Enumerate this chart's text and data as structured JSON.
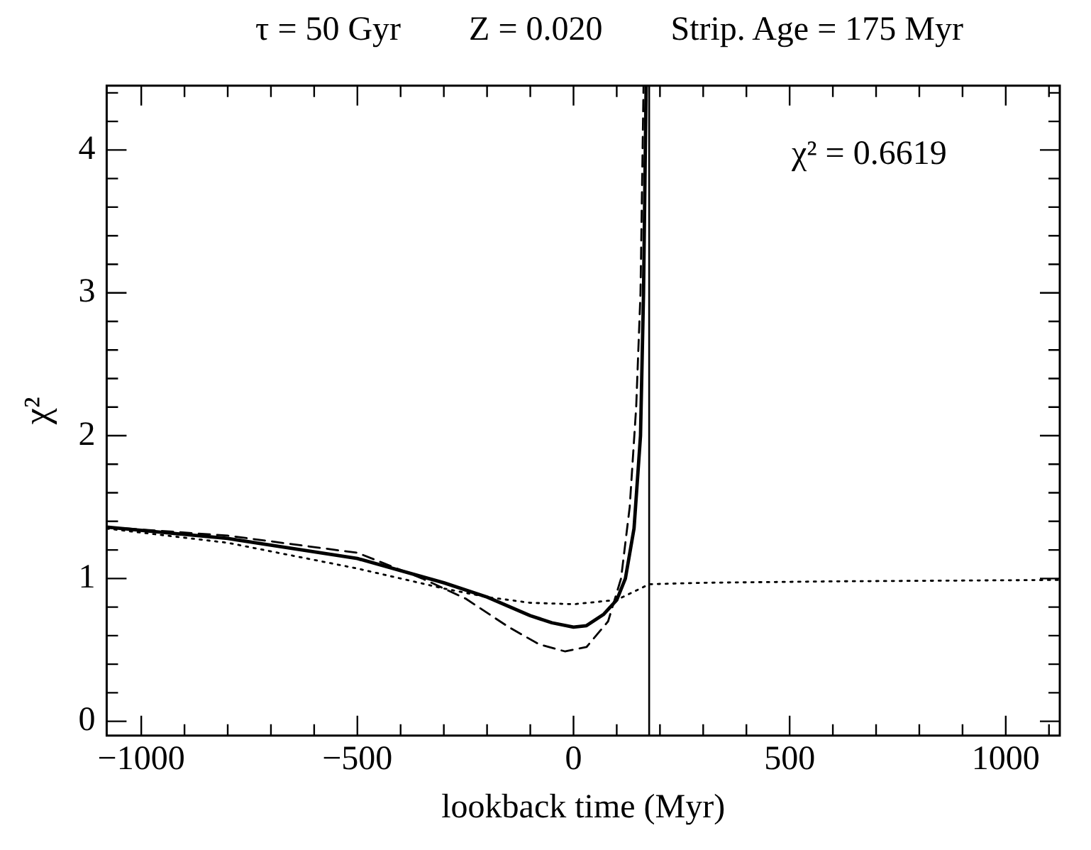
{
  "chart_data": {
    "type": "line",
    "title": "τ = 50 Gyr        Z = 0.020        Strip. Age = 175 Myr",
    "xlabel": "lookback time (Myr)",
    "ylabel": "χ²",
    "annotations": [
      "χ² = 0.6619"
    ],
    "xlim": [
      -1080,
      1125
    ],
    "ylim": [
      -0.1,
      4.45
    ],
    "xticks": [
      -1000,
      {
        "value": -900,
        "label": null
      },
      {
        "value": -800,
        "label": null
      },
      {
        "value": -700,
        "label": null
      },
      {
        "value": -600,
        "label": null
      },
      -500,
      {
        "value": -400,
        "label": null
      },
      {
        "value": -300,
        "label": null
      },
      {
        "value": -200,
        "label": null
      },
      {
        "value": -100,
        "label": null
      },
      0,
      {
        "value": 100,
        "label": null
      },
      {
        "value": 200,
        "label": null
      },
      {
        "value": 300,
        "label": null
      },
      {
        "value": 400,
        "label": null
      },
      500,
      {
        "value": 600,
        "label": null
      },
      {
        "value": 700,
        "label": null
      },
      {
        "value": 800,
        "label": null
      },
      {
        "value": 900,
        "label": null
      },
      1000,
      {
        "value": 1100,
        "label": null
      }
    ],
    "yticks": [
      0,
      {
        "value": 0.2,
        "label": null
      },
      {
        "value": 0.4,
        "label": null
      },
      {
        "value": 0.6,
        "label": null
      },
      {
        "value": 0.8,
        "label": null
      },
      1,
      {
        "value": 1.2,
        "label": null
      },
      {
        "value": 1.4,
        "label": null
      },
      {
        "value": 1.6,
        "label": null
      },
      {
        "value": 1.8,
        "label": null
      },
      2,
      {
        "value": 2.2,
        "label": null
      },
      {
        "value": 2.4,
        "label": null
      },
      {
        "value": 2.6,
        "label": null
      },
      {
        "value": 2.8,
        "label": null
      },
      3,
      {
        "value": 3.2,
        "label": null
      },
      {
        "value": 3.4,
        "label": null
      },
      {
        "value": 3.6,
        "label": null
      },
      {
        "value": 3.8,
        "label": null
      },
      4,
      {
        "value": 4.2,
        "label": null
      },
      {
        "value": 4.4,
        "label": null
      }
    ],
    "grid": false,
    "legend": false,
    "marker": "none",
    "ref_lines": [
      {
        "axis": "x",
        "value": 175,
        "color": "#000000",
        "line_style": "solid"
      }
    ],
    "series": [
      {
        "color": "#000000",
        "line_style": "solid",
        "x": [
          -1080,
          -800,
          -500,
          -300,
          -200,
          -100,
          -50,
          0,
          30,
          70,
          100,
          120,
          140,
          155,
          162,
          168
        ],
        "values": [
          1.36,
          1.28,
          1.14,
          0.97,
          0.87,
          0.74,
          0.69,
          0.66,
          0.67,
          0.75,
          0.85,
          1.0,
          1.35,
          2.0,
          3.0,
          4.45
        ]
      },
      {
        "color": "#000000",
        "line_style": "dashed",
        "x": [
          -1080,
          -800,
          -500,
          -350,
          -250,
          -150,
          -80,
          -20,
          30,
          80,
          110,
          130,
          145,
          155,
          162
        ],
        "values": [
          1.36,
          1.3,
          1.18,
          1.0,
          0.86,
          0.66,
          0.54,
          0.49,
          0.52,
          0.7,
          1.0,
          1.5,
          2.2,
          3.0,
          4.45
        ]
      },
      {
        "color": "#000000",
        "line_style": "dotted",
        "x": [
          -1080,
          -800,
          -500,
          -300,
          -200,
          -100,
          0,
          100,
          175,
          300,
          600,
          1125
        ],
        "values": [
          1.35,
          1.25,
          1.07,
          0.93,
          0.87,
          0.83,
          0.82,
          0.85,
          0.96,
          0.97,
          0.98,
          0.99
        ]
      }
    ]
  }
}
